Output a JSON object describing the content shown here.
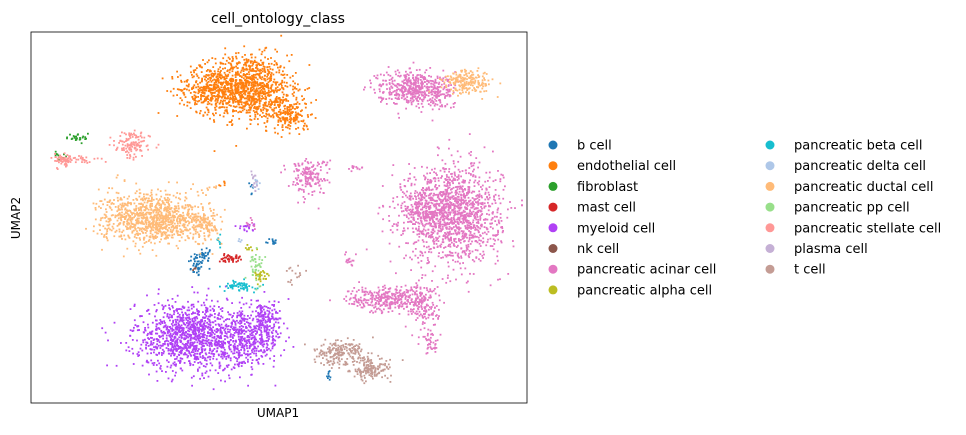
{
  "chart_data": {
    "type": "scatter",
    "title": "cell_ontology_class",
    "xlabel": "UMAP1",
    "ylabel": "UMAP2",
    "xlim": [
      0,
      100
    ],
    "ylim": [
      0,
      100
    ],
    "grid": false,
    "ticks": false,
    "legend_placement": "right",
    "legend_columns": 2,
    "series": [
      {
        "name": "b cell",
        "color": "#1f77b4",
        "clusters": [
          {
            "x": 33.5,
            "y": 37.5,
            "sx": 0.9,
            "sy": 1.8,
            "n": 45
          },
          {
            "x": 35.5,
            "y": 40.0,
            "sx": 0.8,
            "sy": 1.0,
            "n": 20
          },
          {
            "x": 48.5,
            "y": 43.5,
            "sx": 0.6,
            "sy": 0.5,
            "n": 12
          },
          {
            "x": 60.0,
            "y": 7.5,
            "sx": 0.3,
            "sy": 0.7,
            "n": 8
          },
          {
            "x": 44.5,
            "y": 57.5,
            "sx": 0.2,
            "sy": 1.5,
            "n": 6
          }
        ]
      },
      {
        "name": "endothelial cell",
        "color": "#ff7f0e",
        "clusters": [
          {
            "x": 43.5,
            "y": 85.5,
            "sx": 4.2,
            "sy": 4.2,
            "n": 900
          },
          {
            "x": 36.0,
            "y": 84.5,
            "sx": 3.2,
            "sy": 3.0,
            "n": 300
          },
          {
            "x": 47.5,
            "y": 81.0,
            "sx": 4.0,
            "sy": 2.5,
            "n": 180
          },
          {
            "x": 52.5,
            "y": 77.0,
            "sx": 1.7,
            "sy": 2.0,
            "n": 140
          },
          {
            "x": 38.5,
            "y": 59.0,
            "sx": 0.5,
            "sy": 0.4,
            "n": 6
          }
        ]
      },
      {
        "name": "fibroblast",
        "color": "#2ca02c",
        "clusters": [
          {
            "x": 9.5,
            "y": 71.5,
            "sx": 1.2,
            "sy": 0.6,
            "n": 25
          },
          {
            "x": 5.8,
            "y": 66.5,
            "sx": 0.5,
            "sy": 0.9,
            "n": 10
          }
        ]
      },
      {
        "name": "mast cell",
        "color": "#d62728",
        "clusters": [
          {
            "x": 40.0,
            "y": 39.0,
            "sx": 1.1,
            "sy": 0.5,
            "n": 45
          }
        ]
      },
      {
        "name": "myeloid cell",
        "color": "#b041f5",
        "clusters": [
          {
            "x": 32.0,
            "y": 18.0,
            "sx": 5.5,
            "sy": 4.6,
            "n": 1100
          },
          {
            "x": 43.0,
            "y": 17.0,
            "sx": 3.8,
            "sy": 3.6,
            "n": 450
          },
          {
            "x": 47.5,
            "y": 22.5,
            "sx": 1.5,
            "sy": 2.8,
            "n": 130
          },
          {
            "x": 43.5,
            "y": 47.5,
            "sx": 0.9,
            "sy": 0.5,
            "n": 20
          }
        ]
      },
      {
        "name": "nk cell",
        "color": "#8c564b",
        "clusters": [
          {
            "x": 33.0,
            "y": 36.0,
            "sx": 0.3,
            "sy": 0.3,
            "n": 4
          }
        ]
      },
      {
        "name": "pancreatic acinar cell",
        "color": "#e377c2",
        "clusters": [
          {
            "x": 85.0,
            "y": 51.0,
            "sx": 4.8,
            "sy": 6.5,
            "n": 1400
          },
          {
            "x": 79.0,
            "y": 52.0,
            "sx": 2.5,
            "sy": 3.0,
            "n": 150
          },
          {
            "x": 76.5,
            "y": 85.0,
            "sx": 3.3,
            "sy": 2.3,
            "n": 420
          },
          {
            "x": 82.0,
            "y": 84.0,
            "sx": 1.5,
            "sy": 2.5,
            "n": 100
          },
          {
            "x": 56.0,
            "y": 61.0,
            "sx": 2.0,
            "sy": 2.5,
            "n": 160
          },
          {
            "x": 72.0,
            "y": 28.0,
            "sx": 4.0,
            "sy": 1.8,
            "n": 330
          },
          {
            "x": 79.5,
            "y": 26.0,
            "sx": 1.8,
            "sy": 3.0,
            "n": 130
          },
          {
            "x": 80.5,
            "y": 16.5,
            "sx": 0.8,
            "sy": 1.8,
            "n": 40
          },
          {
            "x": 64.5,
            "y": 38.0,
            "sx": 0.6,
            "sy": 1.2,
            "n": 15
          },
          {
            "x": 65.5,
            "y": 63.5,
            "sx": 1.0,
            "sy": 0.4,
            "n": 12
          },
          {
            "x": 44.5,
            "y": 48.0,
            "sx": 0.5,
            "sy": 0.5,
            "n": 10
          }
        ]
      },
      {
        "name": "pancreatic alpha cell",
        "color": "#bcbd22",
        "clusters": [
          {
            "x": 46.5,
            "y": 34.0,
            "sx": 0.9,
            "sy": 0.9,
            "n": 30
          },
          {
            "x": 44.0,
            "y": 41.5,
            "sx": 0.5,
            "sy": 0.6,
            "n": 8
          }
        ]
      },
      {
        "name": "pancreatic beta cell",
        "color": "#17becf",
        "clusters": [
          {
            "x": 42.0,
            "y": 31.5,
            "sx": 1.5,
            "sy": 0.7,
            "n": 60
          },
          {
            "x": 38.0,
            "y": 44.0,
            "sx": 0.3,
            "sy": 1.0,
            "n": 8
          }
        ]
      },
      {
        "name": "pancreatic delta cell",
        "color": "#aec7e8",
        "clusters": [
          {
            "x": 45.5,
            "y": 59.0,
            "sx": 0.4,
            "sy": 0.8,
            "n": 10
          },
          {
            "x": 42.0,
            "y": 44.0,
            "sx": 0.3,
            "sy": 0.3,
            "n": 4
          }
        ]
      },
      {
        "name": "pancreatic ductal cell",
        "color": "#ffbb78",
        "clusters": [
          {
            "x": 22.5,
            "y": 50.0,
            "sx": 4.3,
            "sy": 3.4,
            "n": 650
          },
          {
            "x": 29.0,
            "y": 49.5,
            "sx": 4.0,
            "sy": 3.0,
            "n": 380
          },
          {
            "x": 35.5,
            "y": 48.0,
            "sx": 1.4,
            "sy": 2.2,
            "n": 80
          },
          {
            "x": 88.0,
            "y": 86.5,
            "sx": 2.5,
            "sy": 1.6,
            "n": 200
          },
          {
            "x": 36.5,
            "y": 58.0,
            "sx": 0.6,
            "sy": 0.3,
            "n": 6
          }
        ]
      },
      {
        "name": "pancreatic pp cell",
        "color": "#98df8a",
        "clusters": [
          {
            "x": 45.5,
            "y": 37.5,
            "sx": 0.7,
            "sy": 2.4,
            "n": 40
          }
        ]
      },
      {
        "name": "pancreatic stellate cell",
        "color": "#ff9896",
        "clusters": [
          {
            "x": 20.5,
            "y": 69.5,
            "sx": 1.7,
            "sy": 1.8,
            "n": 120
          },
          {
            "x": 6.5,
            "y": 65.5,
            "sx": 1.2,
            "sy": 1.0,
            "n": 60
          },
          {
            "x": 10.5,
            "y": 65.5,
            "sx": 2.0,
            "sy": 0.6,
            "n": 25
          }
        ]
      },
      {
        "name": "plasma cell",
        "color": "#c5b0d5",
        "clusters": [
          {
            "x": 45.0,
            "y": 60.5,
            "sx": 0.4,
            "sy": 1.4,
            "n": 15
          }
        ]
      },
      {
        "name": "t cell",
        "color": "#c49c94",
        "clusters": [
          {
            "x": 62.0,
            "y": 13.5,
            "sx": 2.5,
            "sy": 1.7,
            "n": 200
          },
          {
            "x": 68.5,
            "y": 9.0,
            "sx": 2.0,
            "sy": 1.5,
            "n": 150
          },
          {
            "x": 53.0,
            "y": 34.5,
            "sx": 0.8,
            "sy": 1.5,
            "n": 15
          }
        ]
      }
    ]
  }
}
